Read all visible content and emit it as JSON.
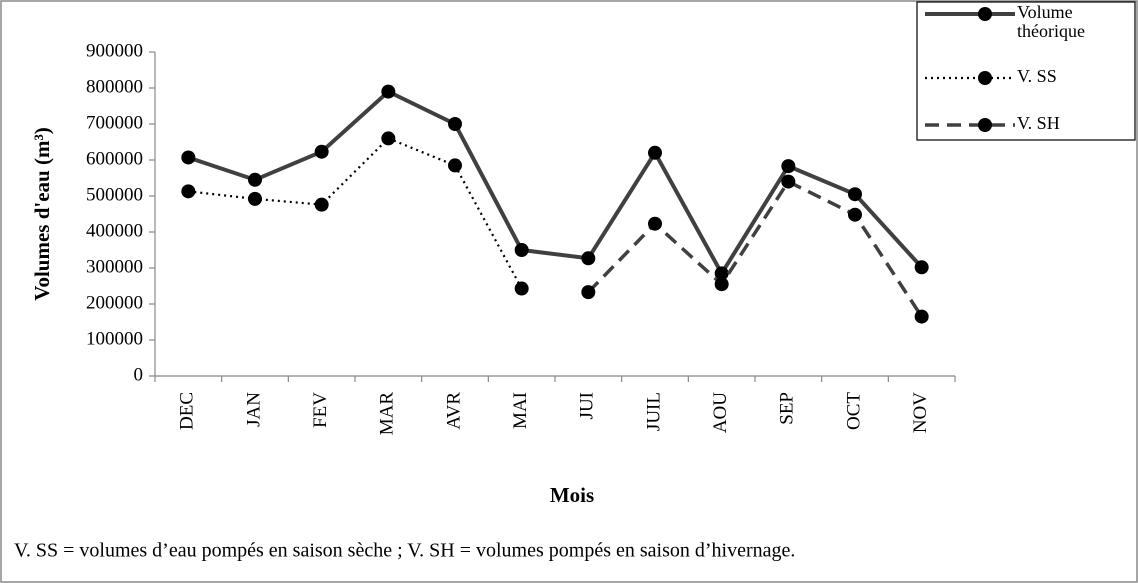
{
  "chart_data": {
    "type": "line",
    "categories": [
      "DEC",
      "JAN",
      "FEV",
      "MAR",
      "AVR",
      "MAI",
      "JUI",
      "JUIL",
      "AOU",
      "SEP",
      "OCT",
      "NOV"
    ],
    "series": [
      {
        "name": "Volume théorique",
        "color": "#404040",
        "line_style": "solid",
        "values": [
          607000,
          545000,
          623000,
          790000,
          700000,
          350000,
          327000,
          620000,
          285000,
          583000,
          505000,
          302000
        ]
      },
      {
        "name": "V. SS",
        "color": "#000000",
        "line_style": "dotted",
        "values": [
          513000,
          492000,
          476000,
          660000,
          585000,
          243000,
          null,
          null,
          null,
          null,
          null,
          null
        ]
      },
      {
        "name": "V. SH",
        "color": "#404040",
        "line_style": "dashed",
        "values": [
          null,
          null,
          null,
          null,
          null,
          null,
          233000,
          423000,
          255000,
          540000,
          448000,
          165000
        ]
      }
    ],
    "ylim": [
      0,
      900000
    ],
    "yticks": [
      0,
      100000,
      200000,
      300000,
      400000,
      500000,
      600000,
      700000,
      800000,
      900000
    ],
    "ylabel": "Volumes d'eau (m³)",
    "xlabel": "Mois",
    "note": "V. SS = volumes d’eau pompés en saison sèche ; V. SH = volumes pompés en saison d’hivernage.",
    "legend": "top-right",
    "grid": false
  }
}
